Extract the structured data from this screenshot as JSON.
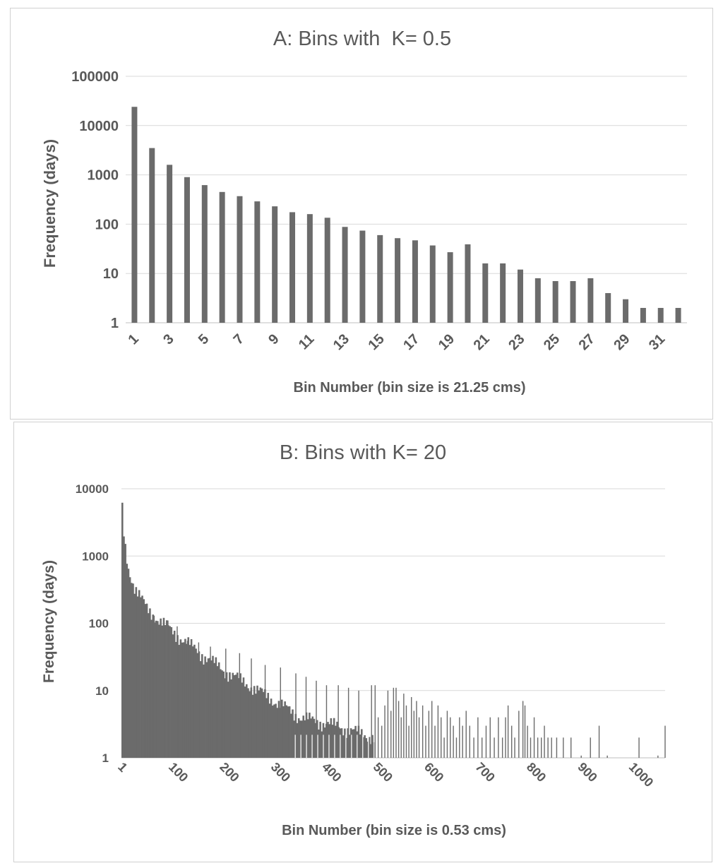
{
  "chart_data": [
    {
      "type": "bar",
      "title": "A: Bins with  K= 0.5",
      "xlabel": "Bin Number (bin size is 21.25 cms)",
      "ylabel": "Frequency (days)",
      "y_scale": "log",
      "ylim": [
        1,
        100000
      ],
      "y_ticks": [
        "1",
        "10",
        "100",
        "1000",
        "10000",
        "100000"
      ],
      "x_tick_labels": [
        "1",
        "3",
        "5",
        "7",
        "9",
        "11",
        "13",
        "15",
        "17",
        "19",
        "21",
        "23",
        "25",
        "27",
        "29",
        "31"
      ],
      "grid": true,
      "bar_color": "#6b6b6b",
      "categories": [
        1,
        2,
        3,
        4,
        5,
        6,
        7,
        8,
        9,
        10,
        11,
        12,
        13,
        14,
        15,
        16,
        17,
        18,
        19,
        20,
        21,
        22,
        23,
        24,
        25,
        26,
        27,
        28,
        29,
        30,
        31,
        32
      ],
      "values": [
        24000,
        3500,
        1600,
        900,
        620,
        450,
        370,
        290,
        230,
        175,
        160,
        135,
        88,
        74,
        60,
        52,
        47,
        37,
        27,
        39,
        16,
        16,
        12,
        8,
        7,
        7,
        8,
        4,
        3,
        2,
        2,
        2
      ]
    },
    {
      "type": "bar",
      "title": "B: Bins with K= 20",
      "xlabel": "Bin Number (bin size is 0.53 cms)",
      "ylabel": "Frequency (days)",
      "y_scale": "log",
      "ylim": [
        1,
        10000
      ],
      "y_ticks": [
        "1",
        "10",
        "100",
        "1000",
        "10000"
      ],
      "x_tick_labels": [
        "1",
        "100",
        "200",
        "300",
        "400",
        "500",
        "600",
        "700",
        "800",
        "900",
        "1000"
      ],
      "grid": true,
      "bar_color": "#6b6b6b",
      "x_range": [
        1,
        1064
      ],
      "dense_region": {
        "decay_anchors": [
          [
            1,
            5000
          ],
          [
            3,
            2500
          ],
          [
            6,
            1500
          ],
          [
            12,
            700
          ],
          [
            25,
            350
          ],
          [
            50,
            160
          ],
          [
            100,
            75
          ],
          [
            150,
            38
          ],
          [
            200,
            20
          ],
          [
            250,
            12
          ],
          [
            300,
            7
          ],
          [
            350,
            4
          ],
          [
            420,
            3
          ],
          [
            495,
            2
          ]
        ],
        "spikes": [
          [
            30,
            220
          ],
          [
            48,
            170
          ],
          [
            65,
            130
          ],
          [
            92,
            110
          ],
          [
            110,
            90
          ],
          [
            130,
            55
          ],
          [
            152,
            52
          ],
          [
            175,
            45
          ],
          [
            205,
            42
          ],
          [
            232,
            36
          ],
          [
            255,
            30
          ],
          [
            282,
            24
          ],
          [
            312,
            22
          ],
          [
            342,
            18
          ],
          [
            362,
            16
          ],
          [
            382,
            14
          ],
          [
            402,
            12
          ],
          [
            425,
            12
          ],
          [
            445,
            11
          ],
          [
            465,
            10
          ],
          [
            490,
            12
          ]
        ]
      },
      "sparse_bars": [
        [
          497,
          12
        ],
        [
          503,
          4
        ],
        [
          510,
          3
        ],
        [
          516,
          6
        ],
        [
          522,
          10
        ],
        [
          528,
          5
        ],
        [
          533,
          11
        ],
        [
          538,
          11
        ],
        [
          543,
          7
        ],
        [
          548,
          4
        ],
        [
          553,
          9
        ],
        [
          558,
          6
        ],
        [
          563,
          3
        ],
        [
          568,
          8
        ],
        [
          573,
          5
        ],
        [
          578,
          7
        ],
        [
          583,
          4
        ],
        [
          590,
          6
        ],
        [
          596,
          3
        ],
        [
          602,
          5
        ],
        [
          608,
          7
        ],
        [
          614,
          3
        ],
        [
          620,
          6
        ],
        [
          626,
          4
        ],
        [
          632,
          2
        ],
        [
          638,
          5
        ],
        [
          644,
          4
        ],
        [
          650,
          3
        ],
        [
          656,
          2
        ],
        [
          662,
          4
        ],
        [
          668,
          3
        ],
        [
          675,
          5
        ],
        [
          682,
          3
        ],
        [
          690,
          2
        ],
        [
          698,
          4
        ],
        [
          706,
          2
        ],
        [
          714,
          3
        ],
        [
          722,
          4
        ],
        [
          730,
          2
        ],
        [
          738,
          4
        ],
        [
          746,
          2
        ],
        [
          752,
          4
        ],
        [
          757,
          6
        ],
        [
          764,
          3
        ],
        [
          770,
          2
        ],
        [
          778,
          5
        ],
        [
          786,
          7
        ],
        [
          790,
          6
        ],
        [
          795,
          3
        ],
        [
          801,
          2
        ],
        [
          808,
          4
        ],
        [
          815,
          2
        ],
        [
          822,
          2
        ],
        [
          828,
          3
        ],
        [
          835,
          2
        ],
        [
          842,
          2
        ],
        [
          852,
          2
        ],
        [
          865,
          2
        ],
        [
          880,
          2
        ],
        [
          900,
          1
        ],
        [
          918,
          2
        ],
        [
          935,
          3
        ],
        [
          951,
          1
        ],
        [
          1013,
          2
        ],
        [
          1050,
          1
        ],
        [
          1064,
          3
        ]
      ]
    }
  ]
}
